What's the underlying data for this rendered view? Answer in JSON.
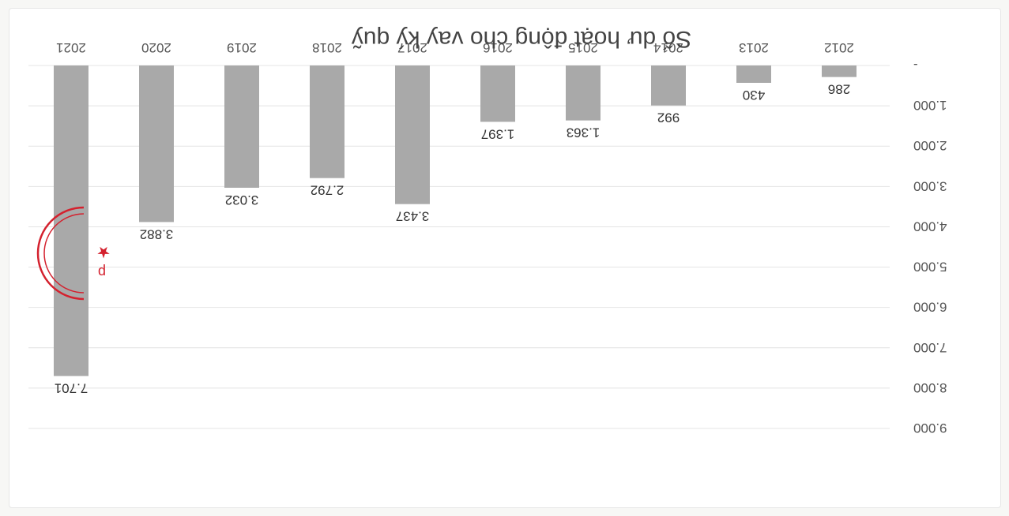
{
  "chart_data": {
    "type": "bar",
    "title": "Số dư hoạt động cho vay ký quỹ",
    "categories": [
      "2012",
      "2013",
      "2014",
      "2015",
      "2016",
      "2017",
      "2018",
      "2019",
      "2020",
      "2021"
    ],
    "values": [
      286,
      430,
      992,
      1363,
      1397,
      3437,
      2792,
      3032,
      3882,
      7701
    ],
    "value_labels": [
      "286",
      "430",
      "992",
      "1.363",
      "1.397",
      "3.437",
      "2.792",
      "3.032",
      "3.882",
      "7.701"
    ],
    "ylim": [
      0,
      9000
    ],
    "y_ticks": [
      "-",
      "1.000",
      "2.000",
      "3.000",
      "4.000",
      "5.000",
      "6.000",
      "7.000",
      "8.000",
      "9.000"
    ],
    "grid": true,
    "legend": "none",
    "orientation": "rotated-180",
    "bar_color": "#a9a9a9",
    "stamp": {
      "letter": "p",
      "color": "#d4212e"
    }
  }
}
